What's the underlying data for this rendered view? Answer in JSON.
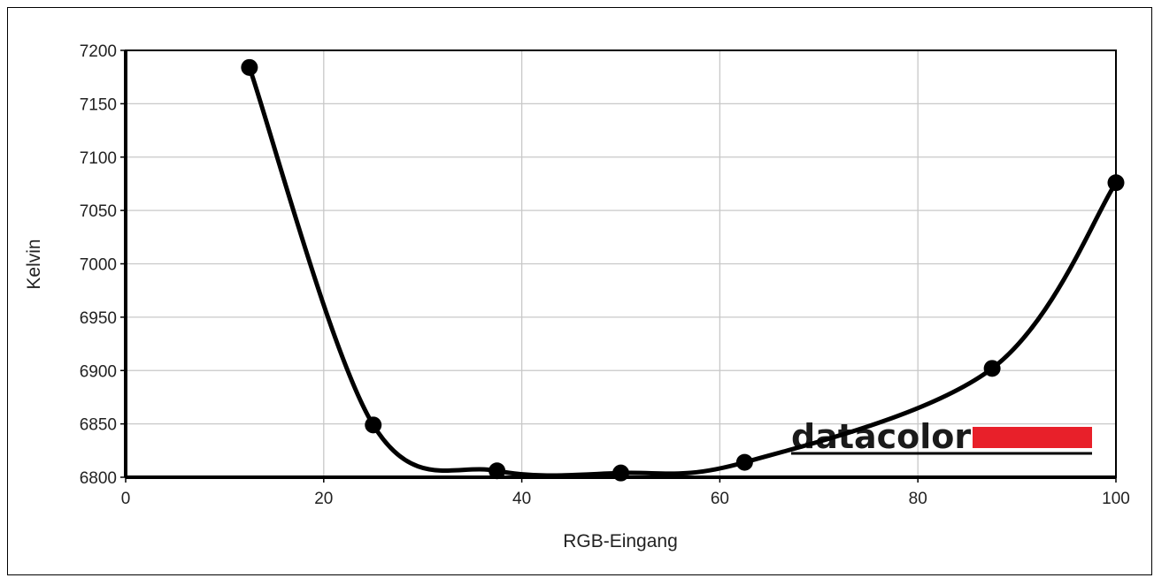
{
  "chart_data": {
    "type": "line",
    "xlabel": "RGB-Eingang",
    "ylabel": "Kelvin",
    "xlim": [
      0,
      100
    ],
    "ylim": [
      6800,
      7200
    ],
    "xticks": [
      0,
      20,
      40,
      60,
      80,
      100
    ],
    "yticks": [
      6800,
      6850,
      6900,
      6950,
      7000,
      7050,
      7100,
      7150,
      7200
    ],
    "grid": true,
    "legend": "none",
    "series": [
      {
        "x": [
          12.5,
          25,
          37.5,
          50,
          62.5,
          87.5,
          100
        ],
        "y": [
          7184,
          6849,
          6806,
          6804,
          6814,
          6902,
          7076
        ]
      }
    ],
    "colors": {
      "line": "#000000",
      "logo_bar": "#e8202a"
    }
  },
  "logo": {
    "text": "datacolor"
  }
}
